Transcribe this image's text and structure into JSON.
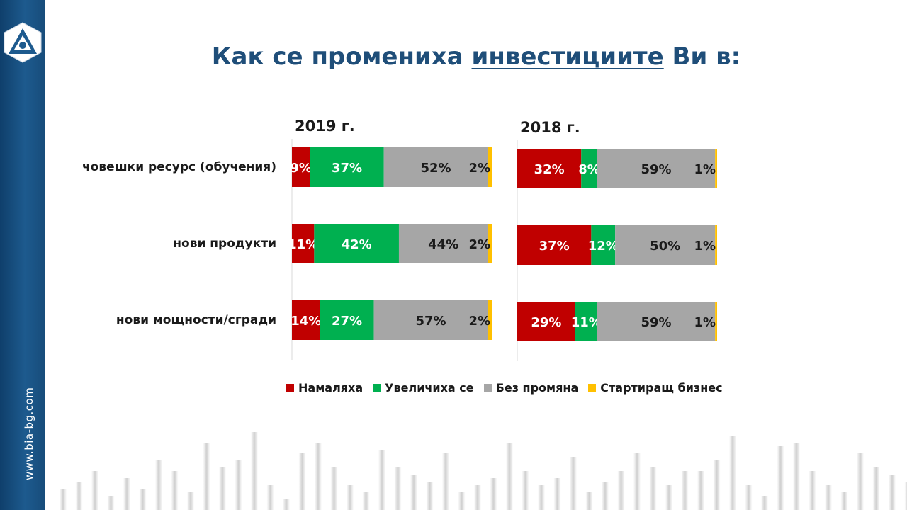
{
  "page": {
    "title_part1": "Как се промениха ",
    "title_part2": "инвестициите",
    "title_part3": " Ви в:",
    "site_url": "www.bia-bg.com"
  },
  "colors": {
    "decreased": "#c00000",
    "increased": "#00b050",
    "unchanged": "#a6a6a6",
    "startup": "#ffc000",
    "sidebar": "#1d5a8e",
    "title": "#1f4e79"
  },
  "chart_data": [
    {
      "type": "bar",
      "orientation": "horizontal",
      "stacked": true,
      "title": "2019 г.",
      "categories": [
        "човешки ресурс (обучения)",
        "нови продукти",
        "нови мощности/сгради"
      ],
      "series": [
        {
          "name": "Намаляха",
          "values": [
            9,
            11,
            14
          ],
          "labels": [
            "9%",
            "11%",
            "14%"
          ]
        },
        {
          "name": "Увеличиха се",
          "values": [
            37,
            42,
            27
          ],
          "labels": [
            "37%",
            "42%",
            "27%"
          ]
        },
        {
          "name": "Без промяна",
          "values": [
            52,
            44,
            57
          ],
          "labels": [
            "52%",
            "44%",
            "57%"
          ]
        },
        {
          "name": "Стартиращ бизнес",
          "values": [
            2,
            2,
            2
          ],
          "labels": [
            "2%",
            "2%",
            "2%"
          ]
        }
      ]
    },
    {
      "type": "bar",
      "orientation": "horizontal",
      "stacked": true,
      "title": "2018 г.",
      "categories": [
        "човешки ресурс (обучения)",
        "нови продукти",
        "нови мощности/сгради"
      ],
      "series": [
        {
          "name": "Намаляха",
          "values": [
            32,
            37,
            29
          ],
          "labels": [
            "32%",
            "37%",
            "29%"
          ]
        },
        {
          "name": "Увеличиха се",
          "values": [
            8,
            12,
            11
          ],
          "labels": [
            "8%",
            "12%",
            "11%"
          ]
        },
        {
          "name": "Без промяна",
          "values": [
            59,
            50,
            59
          ],
          "labels": [
            "59%",
            "50%",
            "59%"
          ]
        },
        {
          "name": "Стартиращ бизнес",
          "values": [
            1,
            1,
            1
          ],
          "labels": [
            "1%",
            "1%",
            "1%"
          ]
        }
      ]
    }
  ],
  "legend": {
    "placement": "bottom",
    "items": [
      {
        "label": "Намаляха",
        "color": "#c00000"
      },
      {
        "label": "Увеличиха се",
        "color": "#00b050"
      },
      {
        "label": "Без промяна",
        "color": "#a6a6a6"
      },
      {
        "label": "Стартиращ бизнес",
        "color": "#ffc000"
      }
    ]
  }
}
